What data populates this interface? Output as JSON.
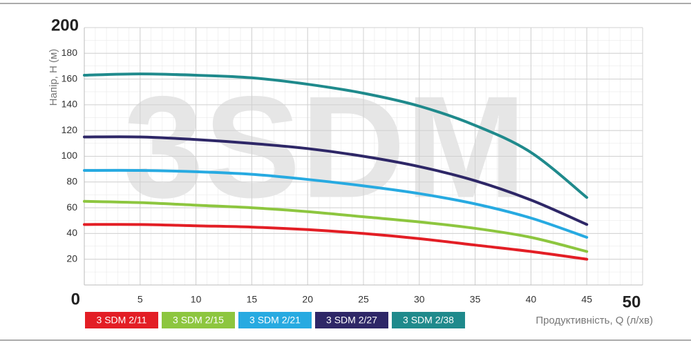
{
  "chart_data": {
    "type": "line",
    "watermark": "3SDM",
    "y_label": "Напір, H (м)",
    "x_label": "Продуктивність, Q (л/хв)",
    "x": [
      0,
      5,
      10,
      15,
      20,
      25,
      30,
      35,
      40,
      45
    ],
    "xlim": [
      0,
      50
    ],
    "xticks": [
      0,
      5,
      10,
      15,
      20,
      25,
      30,
      35,
      40,
      45,
      50
    ],
    "ylim": [
      0,
      200
    ],
    "yticks": [
      0,
      20,
      40,
      60,
      80,
      100,
      120,
      140,
      160,
      180,
      200
    ],
    "grid": true,
    "series": [
      {
        "name": "3 SDM 2/11",
        "color": "#e31e25",
        "values": [
          47,
          47,
          46,
          45,
          43,
          40,
          36,
          31,
          26,
          20
        ]
      },
      {
        "name": "3 SDM 2/15",
        "color": "#8dc63f",
        "values": [
          65,
          64,
          62,
          60,
          57,
          53,
          49,
          44,
          37,
          26
        ]
      },
      {
        "name": "3 SDM 2/21",
        "color": "#27aae1",
        "values": [
          89,
          89,
          88,
          86,
          82,
          77,
          71,
          63,
          52,
          37
        ]
      },
      {
        "name": "3 SDM 2/27",
        "color": "#2e2767",
        "values": [
          115,
          115,
          113,
          110,
          106,
          100,
          92,
          81,
          66,
          47
        ]
      },
      {
        "name": "3 SDM 2/38",
        "color": "#1f8a8c",
        "values": [
          163,
          164,
          163,
          161,
          156,
          149,
          139,
          124,
          103,
          68
        ]
      }
    ]
  }
}
